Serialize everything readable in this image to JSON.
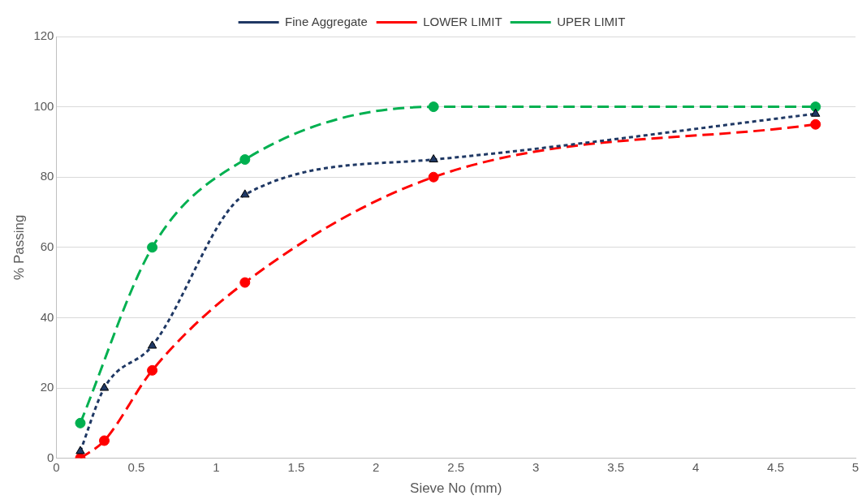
{
  "chart_data": {
    "type": "line",
    "xlabel": "Sieve No (mm)",
    "ylabel": "% Passing",
    "x": [
      0.15,
      0.3,
      0.6,
      1.18,
      2.36,
      4.75
    ],
    "series": [
      {
        "name": "Fine Aggregate",
        "color": "#1f3864",
        "values": [
          2,
          20,
          32,
          75,
          85,
          98
        ],
        "marker": "triangle",
        "line_style": "dotted"
      },
      {
        "name": "LOWER LIMIT",
        "color": "#ff0000",
        "values": [
          0,
          5,
          25,
          50,
          80,
          95
        ],
        "marker": "circle",
        "line_style": "dashed"
      },
      {
        "name": "UPER LIMIT",
        "color": "#00b050",
        "x": [
          0.15,
          0.6,
          1.18,
          2.36,
          4.75
        ],
        "values": [
          10,
          60,
          85,
          100,
          100
        ],
        "marker": "circle",
        "line_style": "dashed"
      }
    ],
    "xlim": [
      0,
      5
    ],
    "xticks": [
      0,
      0.5,
      1,
      1.5,
      2,
      2.5,
      3,
      3.5,
      4,
      4.5,
      5
    ],
    "ylim": [
      0,
      120
    ],
    "yticks": [
      0,
      20,
      40,
      60,
      80,
      100,
      120
    ],
    "grid": "y",
    "legend": "top"
  }
}
